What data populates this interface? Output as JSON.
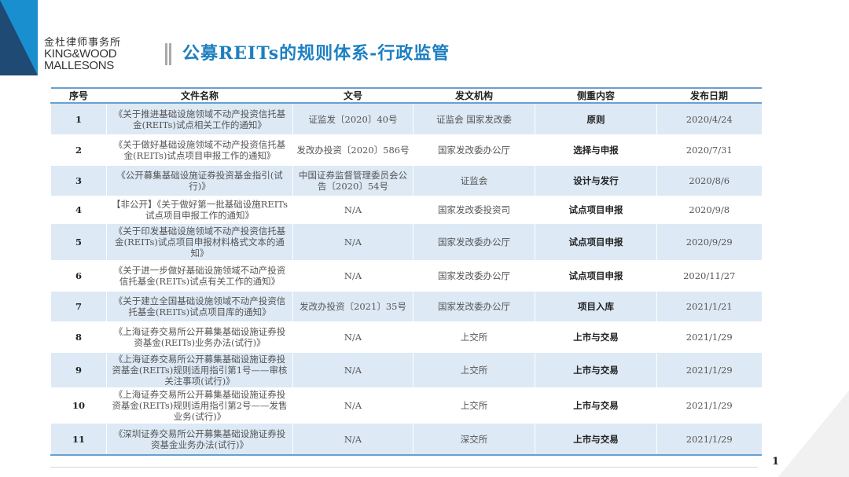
{
  "logo": {
    "cn": "金杜律师事务所",
    "en_line1": "KING&WOOD",
    "en_line2": "MALLESONS"
  },
  "title": "公募REITs的规则体系-行政监管",
  "table": {
    "headers": [
      "序号",
      "文件名称",
      "文号",
      "发文机构",
      "侧重内容",
      "发布日期"
    ],
    "rows": [
      {
        "no": "1",
        "name": "《关于推进基础设施领域不动产投资信托基金(REITs)试点相关工作的通知》",
        "doc_no": "证监发〔2020〕40号",
        "issuer": "证监会 国家发改委",
        "focus": "原则",
        "date": "2020/4/24"
      },
      {
        "no": "2",
        "name": "《关于做好基础设施领域不动产投资信托基金(REITs)试点项目申报工作的通知》",
        "doc_no": "发改办投资〔2020〕586号",
        "issuer": "国家发改委办公厅",
        "focus": "选择与申报",
        "date": "2020/7/31"
      },
      {
        "no": "3",
        "name": "《公开募集基础设施证券投资基金指引(试行)》",
        "doc_no": "中国证券监督管理委员会公告〔2020〕54号",
        "issuer": "证监会",
        "focus": "设计与发行",
        "date": "2020/8/6"
      },
      {
        "no": "4",
        "name": "【非公开】《关于做好第一批基础设施REITs试点项目申报工作的通知》",
        "doc_no": "N/A",
        "issuer": "国家发改委投资司",
        "focus": "试点项目申报",
        "date": "2020/9/8"
      },
      {
        "no": "5",
        "name": "《关于印发基础设施领域不动产投资信托基金(REITs)试点项目申报材料格式文本的通知》",
        "doc_no": "N/A",
        "issuer": "国家发改委办公厅",
        "focus": "试点项目申报",
        "date": "2020/9/29"
      },
      {
        "no": "6",
        "name": "《关于进一步做好基础设施领域不动产投资信托基金(REITs)试点有关工作的通知》",
        "doc_no": "N/A",
        "issuer": "国家发改委办公厅",
        "focus": "试点项目申报",
        "date": "2020/11/27"
      },
      {
        "no": "7",
        "name": "《关于建立全国基础设施领域不动产投资信托基金(REITs)试点项目库的通知》",
        "doc_no": "发改办投资〔2021〕35号",
        "issuer": "国家发改委办公厅",
        "focus": "项目入库",
        "date": "2021/1/21"
      },
      {
        "no": "8",
        "name": "《上海证券交易所公开募集基础设施证券投资基金(REITs)业务办法(试行)》",
        "doc_no": "N/A",
        "issuer": "上交所",
        "focus": "上市与交易",
        "date": "2021/1/29"
      },
      {
        "no": "9",
        "name": "《上海证券交易所公开募集基础设施证券投资基金(REITs)规则适用指引第1号——审核关注事项(试行)》",
        "doc_no": "N/A",
        "issuer": "上交所",
        "focus": "上市与交易",
        "date": "2021/1/29"
      },
      {
        "no": "10",
        "name": "《上海证券交易所公开募集基础设施证券投资基金(REITs)规则适用指引第2号——发售业务(试行)》",
        "doc_no": "N/A",
        "issuer": "上交所",
        "focus": "上市与交易",
        "date": "2021/1/29"
      },
      {
        "no": "11",
        "name": "《深圳证券交易所公开募集基础设施证券投资基金业务办法(试行)》",
        "doc_no": "N/A",
        "issuer": "深交所",
        "focus": "上市与交易",
        "date": "2021/1/29"
      }
    ]
  },
  "page_number": "1",
  "colors": {
    "title": "#1d7fc1",
    "row_shade": "#dde9f5",
    "rule": "#6a9fcf",
    "logo_dark": "#1f4a73",
    "logo_light": "#1a8fd0"
  }
}
